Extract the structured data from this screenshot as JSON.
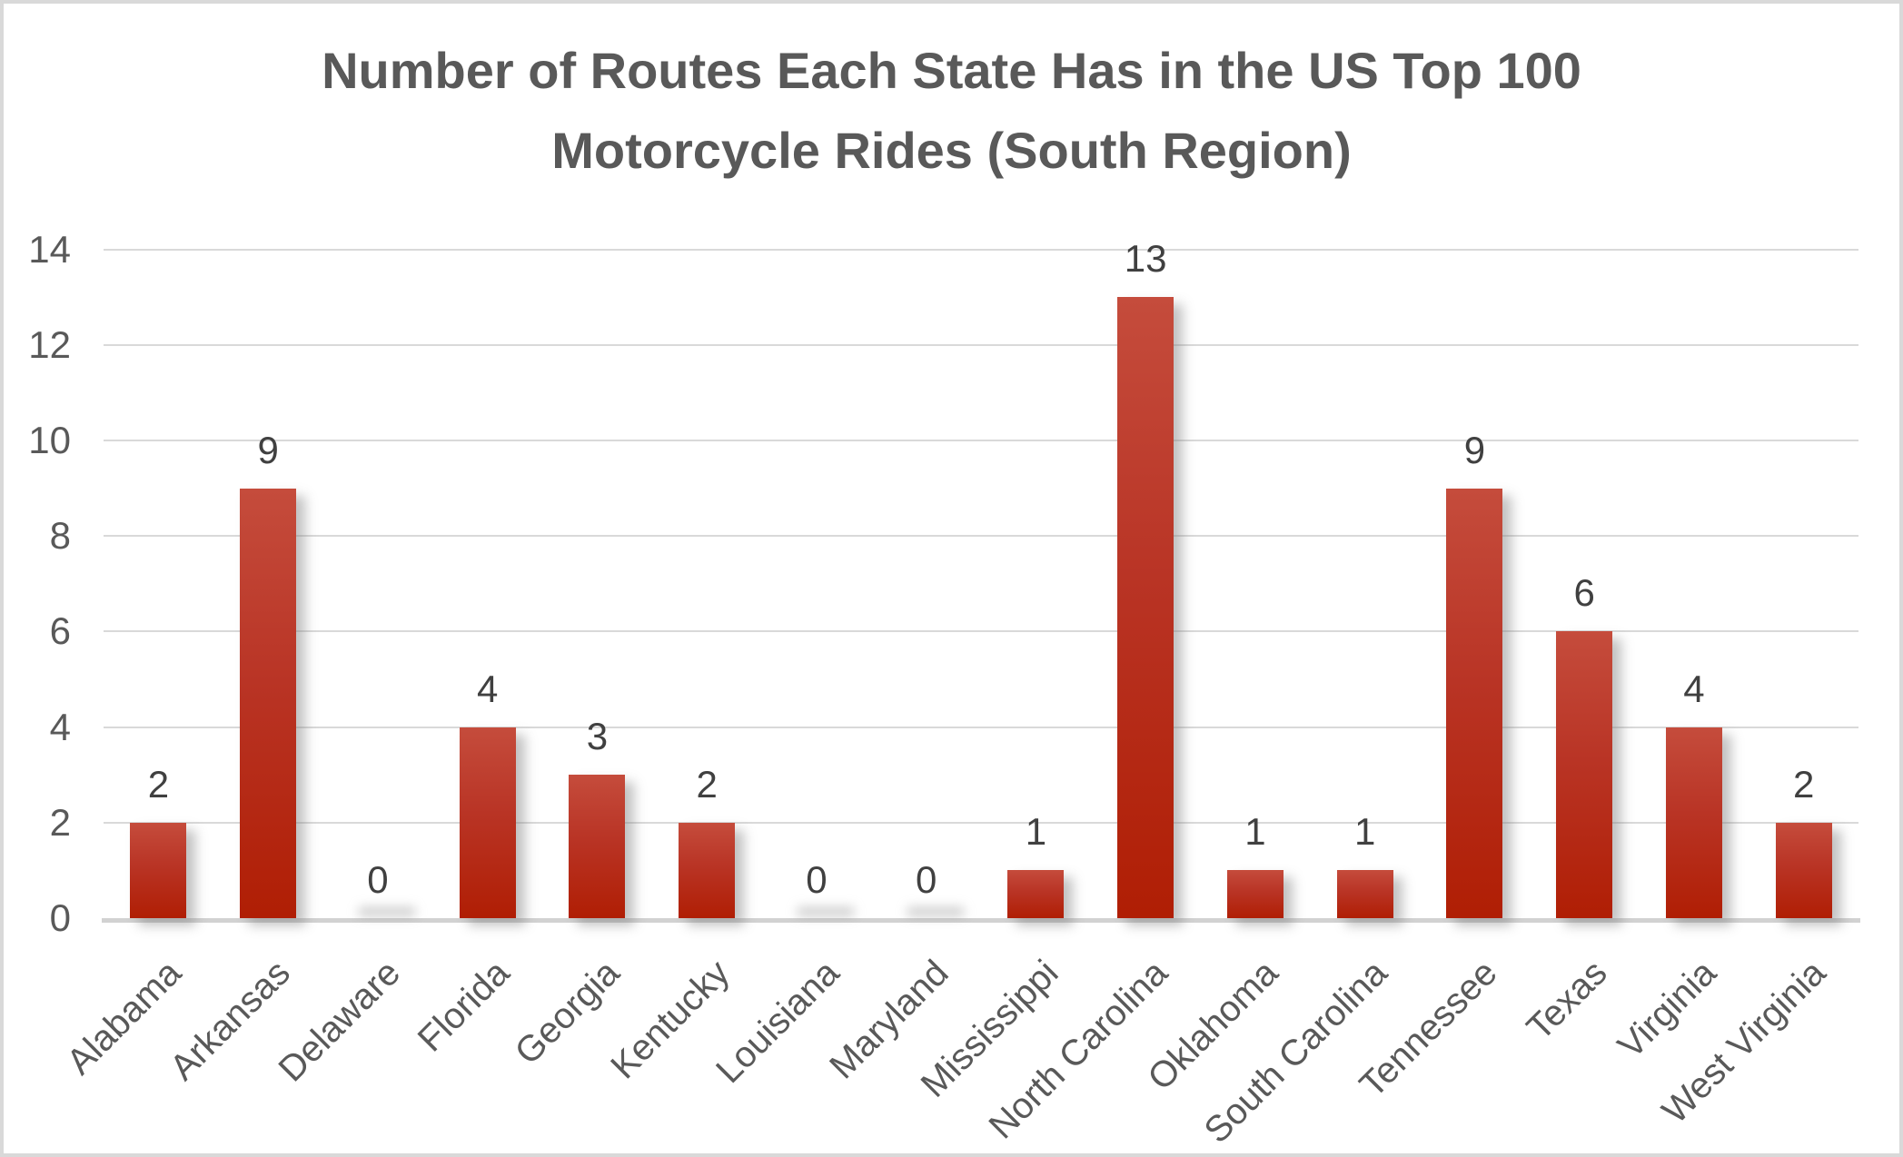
{
  "chart_data": {
    "type": "bar",
    "title": "Number of Routes Each State Has in the US Top 100 Motorcycle Rides (South Region)",
    "title_lines": [
      "Number of Routes Each State Has in the US Top 100",
      "Motorcycle Rides (South Region)"
    ],
    "categories": [
      "Alabama",
      "Arkansas",
      "Delaware",
      "Florida",
      "Georgia",
      "Kentucky",
      "Louisiana",
      "Maryland",
      "Mississippi",
      "North Carolina",
      "Oklahoma",
      "South Carolina",
      "Tennessee",
      "Texas",
      "Virginia",
      "West Virginia"
    ],
    "values": [
      2,
      9,
      0,
      4,
      3,
      2,
      0,
      0,
      1,
      13,
      1,
      1,
      9,
      6,
      4,
      2
    ],
    "data_labels": [
      "2",
      "9",
      "0",
      "4",
      "3",
      "2",
      "0",
      "0",
      "1",
      "13",
      "1",
      "1",
      "9",
      "6",
      "4",
      "2"
    ],
    "xlabel": "",
    "ylabel": "",
    "ylim": [
      0,
      14
    ],
    "yticks": [
      0,
      2,
      4,
      6,
      8,
      10,
      12,
      14
    ],
    "grid": true,
    "legend_position": "none",
    "colors": {
      "bar_gradient_top": "#c54c3c",
      "bar_gradient_bottom": "#b01e04",
      "title_text": "#595959",
      "axis_text": "#595959",
      "data_label_text": "#404040",
      "gridline": "#d9d9d9",
      "axis_line": "#d2d2d2",
      "background": "#ffffff",
      "frame_border": "#d9d9d9"
    }
  }
}
